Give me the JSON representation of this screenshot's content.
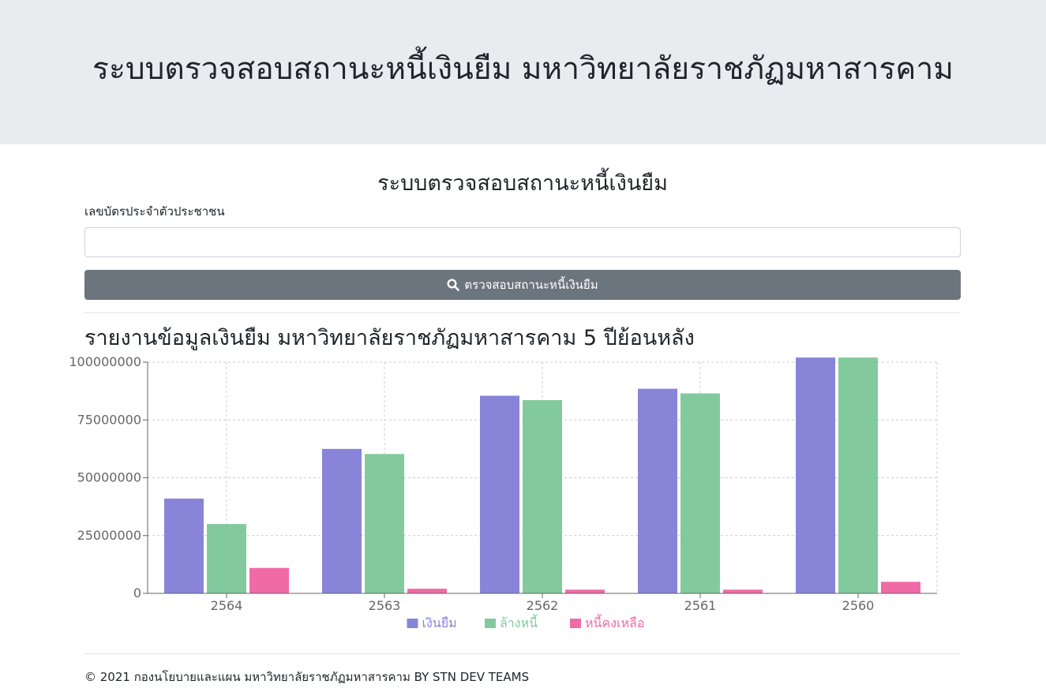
{
  "header": {
    "title": "ระบบตรวจสอบสถานะหนี้เงินยืม มหาวิทยาลัยราชภัฏมหาสารคาม"
  },
  "form": {
    "title": "ระบบตรวจสอบสถานะหนี้เงินยืม",
    "id_label": "เลขบัตรประจำตัวประชาชน",
    "id_value": "",
    "id_placeholder": "",
    "submit_label": "ตรวจสอบสถานะหนี้เงินยืม",
    "submit_icon": "search-icon"
  },
  "report": {
    "title": "รายงานข้อมูลเงินยืม มหาวิทยาลัยราชภัฏมหาสารคาม 5 ปีย้อนหลัง"
  },
  "chart_data": {
    "type": "bar",
    "categories": [
      "2564",
      "2563",
      "2562",
      "2561",
      "2560"
    ],
    "series": [
      {
        "name": "เงินยืม",
        "color": "#8884d8",
        "values": [
          41000000,
          62500000,
          85500000,
          88500000,
          102000000
        ]
      },
      {
        "name": "ล้างหนี้",
        "color": "#82ca9d",
        "values": [
          30000000,
          60300000,
          83600000,
          86500000,
          102000000
        ]
      },
      {
        "name": "หนี้คงเหลือ",
        "color": "#f06aa6",
        "values": [
          11000000,
          2000000,
          1600000,
          1600000,
          5000000
        ]
      }
    ],
    "ylim": [
      0,
      100000000
    ],
    "yticks": [
      "0",
      "25000000",
      "50000000",
      "75000000",
      "100000000"
    ],
    "grid": true,
    "legend": "bottom"
  },
  "footer": {
    "text": "© 2021 กองนโยบายและแผน มหาวิทยาลัยราชภัฏมหาสารคาม BY STN DEV TEAMS"
  }
}
